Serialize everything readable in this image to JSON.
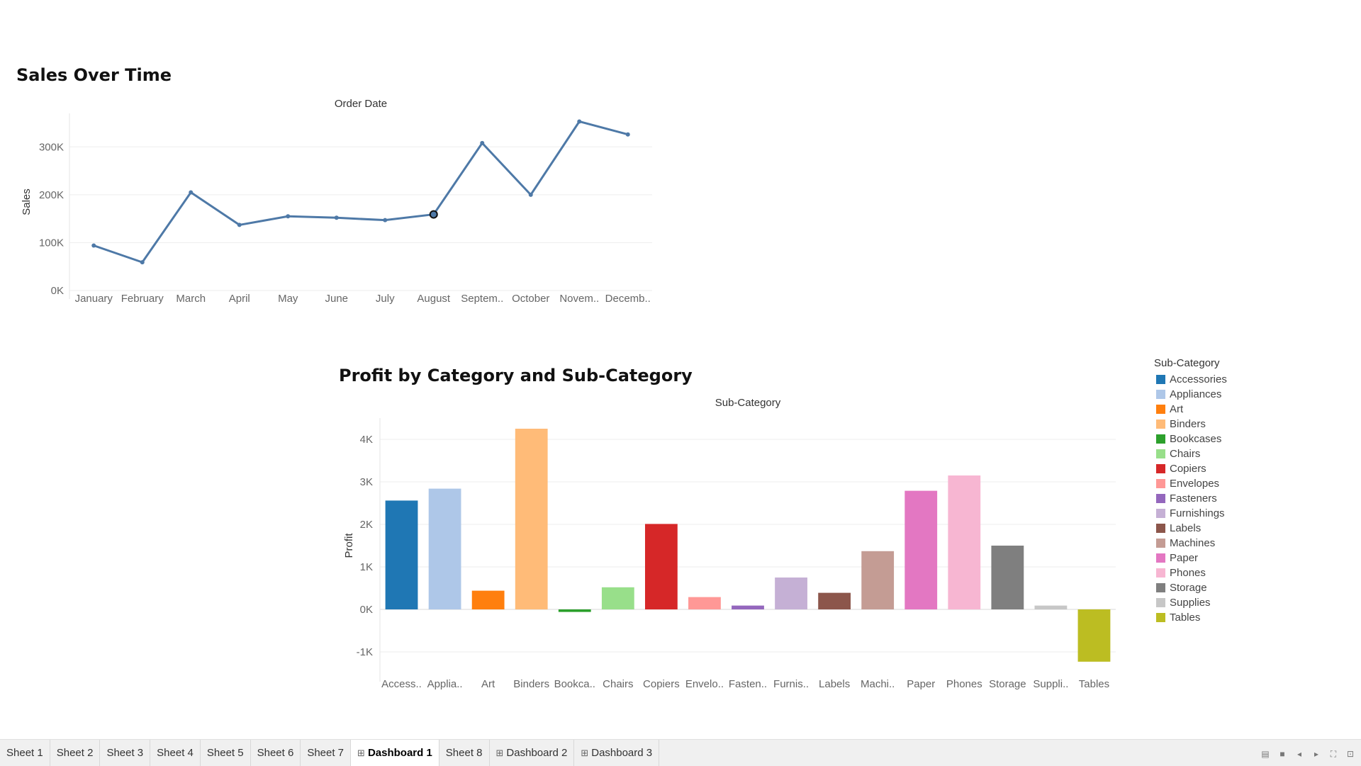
{
  "dashboard": {
    "line_title": "Sales Over Time",
    "bar_title": "Profit by Category and Sub-Category"
  },
  "chart_data": [
    {
      "type": "line",
      "title": "Sales Over Time",
      "header": "Order Date",
      "xlabel": "Order Date",
      "ylabel": "Sales",
      "categories": [
        "January",
        "February",
        "March",
        "April",
        "May",
        "June",
        "July",
        "August",
        "September",
        "October",
        "November",
        "December"
      ],
      "tick_labels": [
        "January",
        "February",
        "March",
        "April",
        "May",
        "June",
        "July",
        "August",
        "Septem..",
        "October",
        "Novem..",
        "Decemb.."
      ],
      "values": [
        94000,
        59000,
        205000,
        137000,
        155000,
        152000,
        147000,
        159000,
        308000,
        200000,
        353000,
        326000
      ],
      "ylim": [
        0,
        370000
      ],
      "yticks": [
        0,
        100000,
        200000,
        300000
      ],
      "ytick_labels": [
        "0K",
        "100K",
        "200K",
        "300K"
      ],
      "highlighted_index": 7,
      "color": "#4e79a7"
    },
    {
      "type": "bar",
      "title": "Profit by Category and Sub-Category",
      "header": "Sub-Category",
      "xlabel": "Sub-Category",
      "ylabel": "Profit",
      "categories": [
        "Accessories",
        "Appliances",
        "Art",
        "Binders",
        "Bookcases",
        "Chairs",
        "Copiers",
        "Envelopes",
        "Fasteners",
        "Furnishings",
        "Labels",
        "Machines",
        "Paper",
        "Phones",
        "Storage",
        "Supplies",
        "Tables"
      ],
      "tick_labels": [
        "Access..",
        "Applia..",
        "Art",
        "Binders",
        "Bookca..",
        "Chairs",
        "Copiers",
        "Envelo..",
        "Fasten..",
        "Furnis..",
        "Labels",
        "Machi..",
        "Paper",
        "Phones",
        "Storage",
        "Suppli..",
        "Tables"
      ],
      "values": [
        2560,
        2840,
        440,
        4250,
        -60,
        520,
        2010,
        290,
        90,
        750,
        390,
        1370,
        2790,
        3150,
        1500,
        90,
        -1230
      ],
      "colors": [
        "#1f77b4",
        "#aec7e8",
        "#ff7f0e",
        "#ffbb78",
        "#2ca02c",
        "#98df8a",
        "#d62728",
        "#ff9896",
        "#9467bd",
        "#c5b0d5",
        "#8c564b",
        "#c49c94",
        "#e377c2",
        "#f7b6d2",
        "#7f7f7f",
        "#c7c7c7",
        "#bcbd22"
      ],
      "ylim": [
        -1500,
        4500
      ],
      "yticks": [
        -1000,
        0,
        1000,
        2000,
        3000,
        4000
      ],
      "ytick_labels": [
        "-1K",
        "0K",
        "1K",
        "2K",
        "3K",
        "4K"
      ],
      "legend_title": "Sub-Category",
      "legend_position": "right"
    }
  ],
  "tabs": [
    {
      "label": "Sheet 1",
      "icon": ""
    },
    {
      "label": "Sheet 2",
      "icon": ""
    },
    {
      "label": "Sheet 3",
      "icon": ""
    },
    {
      "label": "Sheet 4",
      "icon": ""
    },
    {
      "label": "Sheet 5",
      "icon": ""
    },
    {
      "label": "Sheet 6",
      "icon": ""
    },
    {
      "label": "Sheet 7",
      "icon": ""
    },
    {
      "label": "Dashboard 1",
      "icon": "⊞",
      "active": true
    },
    {
      "label": "Sheet 8",
      "icon": ""
    },
    {
      "label": "Dashboard 2",
      "icon": "⊞"
    },
    {
      "label": "Dashboard 3",
      "icon": "⊞"
    }
  ],
  "nav_controls": [
    {
      "name": "grid-view-icon",
      "glyph": "▤"
    },
    {
      "name": "film-strip-icon",
      "glyph": "■"
    },
    {
      "name": "previous-icon",
      "glyph": "◂"
    },
    {
      "name": "next-icon",
      "glyph": "▸"
    },
    {
      "name": "fit-screen-icon",
      "glyph": "⛶"
    },
    {
      "name": "presentation-icon",
      "glyph": "⊡"
    }
  ]
}
